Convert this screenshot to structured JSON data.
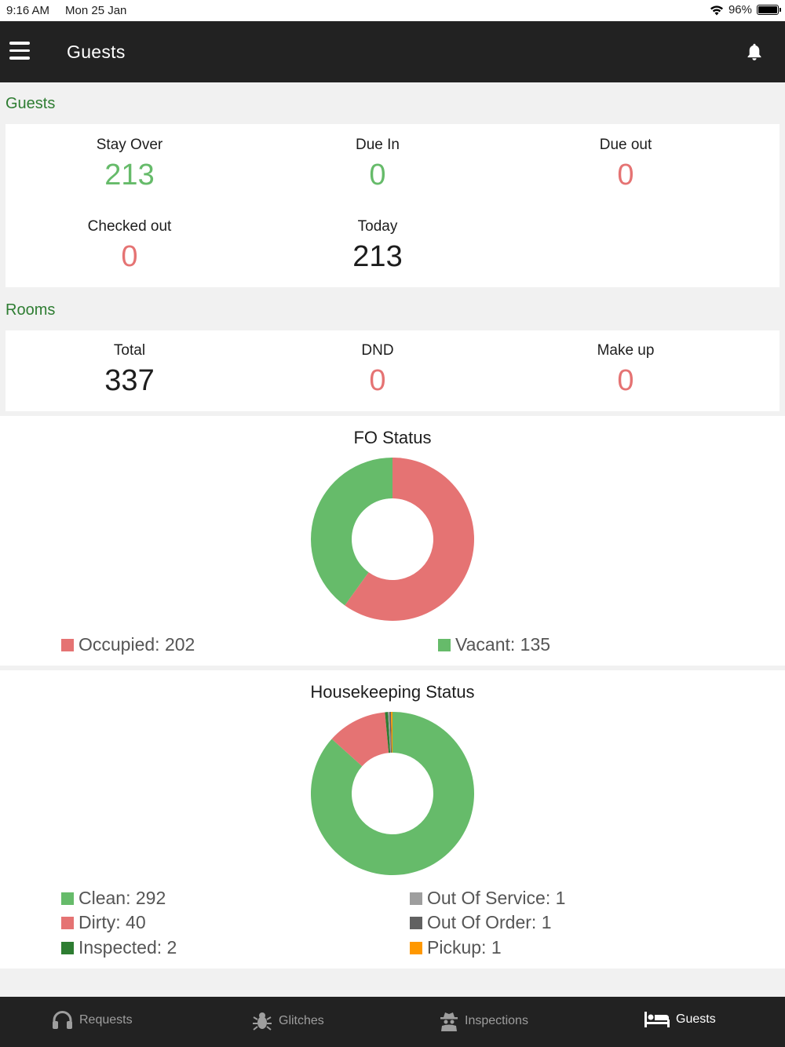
{
  "status_bar": {
    "time": "9:16 AM",
    "date": "Mon 25 Jan",
    "battery": "96%"
  },
  "header": {
    "title": "Guests"
  },
  "guests_section": {
    "label": "Guests",
    "stats": [
      {
        "label": "Stay Over",
        "value": "213",
        "color": "#66bb6a"
      },
      {
        "label": "Due In",
        "value": "0",
        "color": "#66bb6a"
      },
      {
        "label": "Due out",
        "value": "0",
        "color": "#e57373"
      },
      {
        "label": "Checked out",
        "value": "0",
        "color": "#e57373"
      },
      {
        "label": "Today",
        "value": "213",
        "color": "#1d1d1d"
      }
    ]
  },
  "rooms_section": {
    "label": "Rooms",
    "stats": [
      {
        "label": "Total",
        "value": "337",
        "color": "#1d1d1d"
      },
      {
        "label": "DND",
        "value": "0",
        "color": "#e57373"
      },
      {
        "label": "Make up",
        "value": "0",
        "color": "#e57373"
      }
    ]
  },
  "fo_chart": {
    "title": "FO Status",
    "legend": [
      {
        "text": "Occupied: 202",
        "color": "#e57373"
      },
      {
        "text": "Vacant: 135",
        "color": "#66bb6a"
      }
    ]
  },
  "hk_chart": {
    "title": "Housekeeping Status",
    "legend": [
      {
        "text": "Clean: 292",
        "color": "#66bb6a"
      },
      {
        "text": "Dirty: 40",
        "color": "#e57373"
      },
      {
        "text": "Inspected: 2",
        "color": "#2e7d32"
      },
      {
        "text": "Out Of Service: 1",
        "color": "#9e9e9e"
      },
      {
        "text": "Out Of Order: 1",
        "color": "#616161"
      },
      {
        "text": "Pickup: 1",
        "color": "#ff9800"
      }
    ]
  },
  "chart_data": [
    {
      "type": "pie",
      "title": "FO Status",
      "categories": [
        "Occupied",
        "Vacant"
      ],
      "values": [
        202,
        135
      ],
      "colors": [
        "#e57373",
        "#66bb6a"
      ],
      "donut": true
    },
    {
      "type": "pie",
      "title": "Housekeeping Status",
      "categories": [
        "Clean",
        "Dirty",
        "Inspected",
        "Out Of Service",
        "Out Of Order",
        "Pickup"
      ],
      "values": [
        292,
        40,
        2,
        1,
        1,
        1
      ],
      "colors": [
        "#66bb6a",
        "#e57373",
        "#2e7d32",
        "#9e9e9e",
        "#616161",
        "#ff9800"
      ],
      "donut": true
    }
  ],
  "tabs": [
    {
      "label": "Requests",
      "icon": "headphones-icon",
      "active": false
    },
    {
      "label": "Glitches",
      "icon": "bug-icon",
      "active": false
    },
    {
      "label": "Inspections",
      "icon": "spy-icon",
      "active": false
    },
    {
      "label": "Guests",
      "icon": "bed-icon",
      "active": true
    }
  ]
}
